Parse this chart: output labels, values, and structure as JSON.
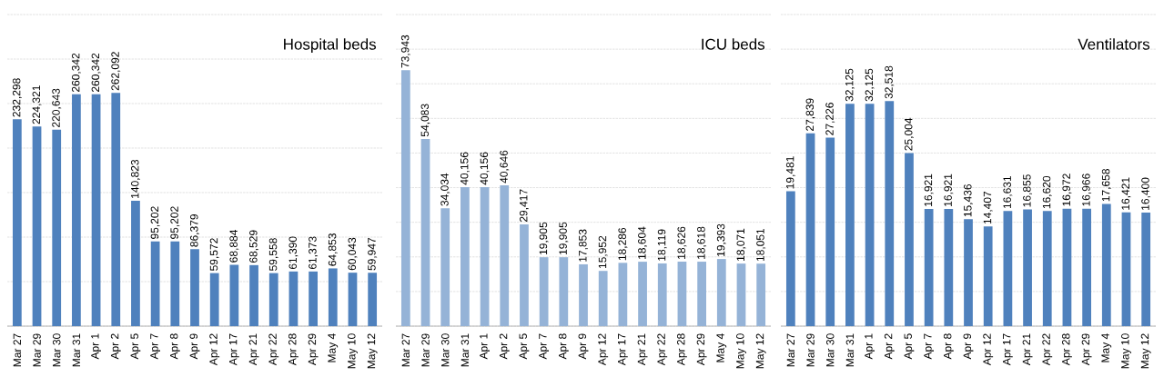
{
  "chart_data": [
    {
      "type": "bar",
      "title": "Hospital beds",
      "categories": [
        "Mar 27",
        "Mar 29",
        "Mar 30",
        "Mar 31",
        "Apr 1",
        "Apr 2",
        "Apr 5",
        "Apr 7",
        "Apr 8",
        "Apr 9",
        "Apr 12",
        "Apr 17",
        "Apr 21",
        "Apr 22",
        "Apr 28",
        "Apr 29",
        "May 4",
        "May 10",
        "May 12"
      ],
      "values": [
        232298,
        224321,
        220643,
        260342,
        260342,
        262092,
        140823,
        95202,
        95202,
        86379,
        59572,
        68884,
        68529,
        59558,
        61390,
        61373,
        64853,
        60043,
        59947
      ],
      "value_labels": [
        "232,298",
        "224,321",
        "220,643",
        "260,342",
        "260,342",
        "262,092",
        "140,823",
        "95,202",
        "95,202",
        "86,379",
        "59,572",
        "68,884",
        "68,529",
        "59,558",
        "61,390",
        "61,373",
        "64,853",
        "60,043",
        "59,947"
      ],
      "color": "#4f81bd",
      "ylim": [
        0,
        350000
      ],
      "yticks": [
        {
          "value": 0,
          "label": null
        },
        {
          "value": 50000,
          "label": null
        },
        {
          "value": 100000,
          "label": null
        },
        {
          "value": 150000,
          "label": null
        },
        {
          "value": 200000,
          "label": null
        },
        {
          "value": 250000,
          "label": null
        },
        {
          "value": 300000,
          "label": null
        },
        {
          "value": 350000,
          "label": null
        }
      ],
      "grid": "y",
      "tick_labels": "x"
    },
    {
      "type": "bar",
      "title": "ICU beds",
      "categories": [
        "Mar 27",
        "Mar 29",
        "Mar 30",
        "Mar 31",
        "Apr 1",
        "Apr 2",
        "Apr 5",
        "Apr 7",
        "Apr 8",
        "Apr 9",
        "Apr 12",
        "Apr 17",
        "Apr 21",
        "Apr 22",
        "Apr 28",
        "Apr 29",
        "May 4",
        "May 10",
        "May 12"
      ],
      "values": [
        73943,
        54083,
        34034,
        40156,
        40156,
        40646,
        29417,
        19905,
        19905,
        17853,
        15952,
        18286,
        18604,
        18119,
        18626,
        18618,
        19393,
        18071,
        18051
      ],
      "value_labels": [
        "73,943",
        "54,083",
        "34,034",
        "40,156",
        "40,156",
        "40,646",
        "29,417",
        "19,905",
        "19,905",
        "17,853",
        "15,952",
        "18,286",
        "18,604",
        "18,119",
        "18,626",
        "18,618",
        "19,393",
        "18,071",
        "18,051"
      ],
      "color": "#95b3d7",
      "ylim": [
        0,
        90000
      ],
      "yticks": [
        {
          "value": 0,
          "label": null
        },
        {
          "value": 10000,
          "label": null
        },
        {
          "value": 20000,
          "label": null
        },
        {
          "value": 30000,
          "label": null
        },
        {
          "value": 40000,
          "label": null
        },
        {
          "value": 50000,
          "label": null
        },
        {
          "value": 60000,
          "label": null
        },
        {
          "value": 70000,
          "label": null
        },
        {
          "value": 80000,
          "label": null
        },
        {
          "value": 90000,
          "label": null
        }
      ],
      "grid": "y",
      "tick_labels": "x"
    },
    {
      "type": "bar",
      "title": "Ventilators",
      "categories": [
        "Mar 27",
        "Mar 29",
        "Mar 30",
        "Mar 31",
        "Apr 1",
        "Apr 2",
        "Apr 5",
        "Apr 7",
        "Apr 8",
        "Apr 9",
        "Apr 12",
        "Apr 17",
        "Apr 21",
        "Apr 22",
        "Apr 28",
        "Apr 29",
        "May 4",
        "May 10",
        "May 12"
      ],
      "values": [
        19481,
        27839,
        27226,
        32125,
        32125,
        32518,
        25004,
        16921,
        16921,
        15436,
        14407,
        16631,
        16855,
        16620,
        16972,
        16966,
        17658,
        16421,
        16400
      ],
      "value_labels": [
        "19,481",
        "27,839",
        "27,226",
        "32,125",
        "32,125",
        "32,518",
        "25,004",
        "16,921",
        "16,921",
        "15,436",
        "14,407",
        "16,631",
        "16,855",
        "16,620",
        "16,972",
        "16,966",
        "17,658",
        "16,421",
        "16,400"
      ],
      "color": "#4f81bd",
      "ylim": [
        0,
        45000
      ],
      "yticks": [
        {
          "value": 0,
          "label": null
        },
        {
          "value": 5000,
          "label": null
        },
        {
          "value": 10000,
          "label": null
        },
        {
          "value": 15000,
          "label": null
        },
        {
          "value": 20000,
          "label": null
        },
        {
          "value": 25000,
          "label": null
        },
        {
          "value": 30000,
          "label": null
        },
        {
          "value": 35000,
          "label": null
        },
        {
          "value": 40000,
          "label": null
        },
        {
          "value": 45000,
          "label": null
        }
      ],
      "grid": "y",
      "tick_labels": "x"
    }
  ]
}
